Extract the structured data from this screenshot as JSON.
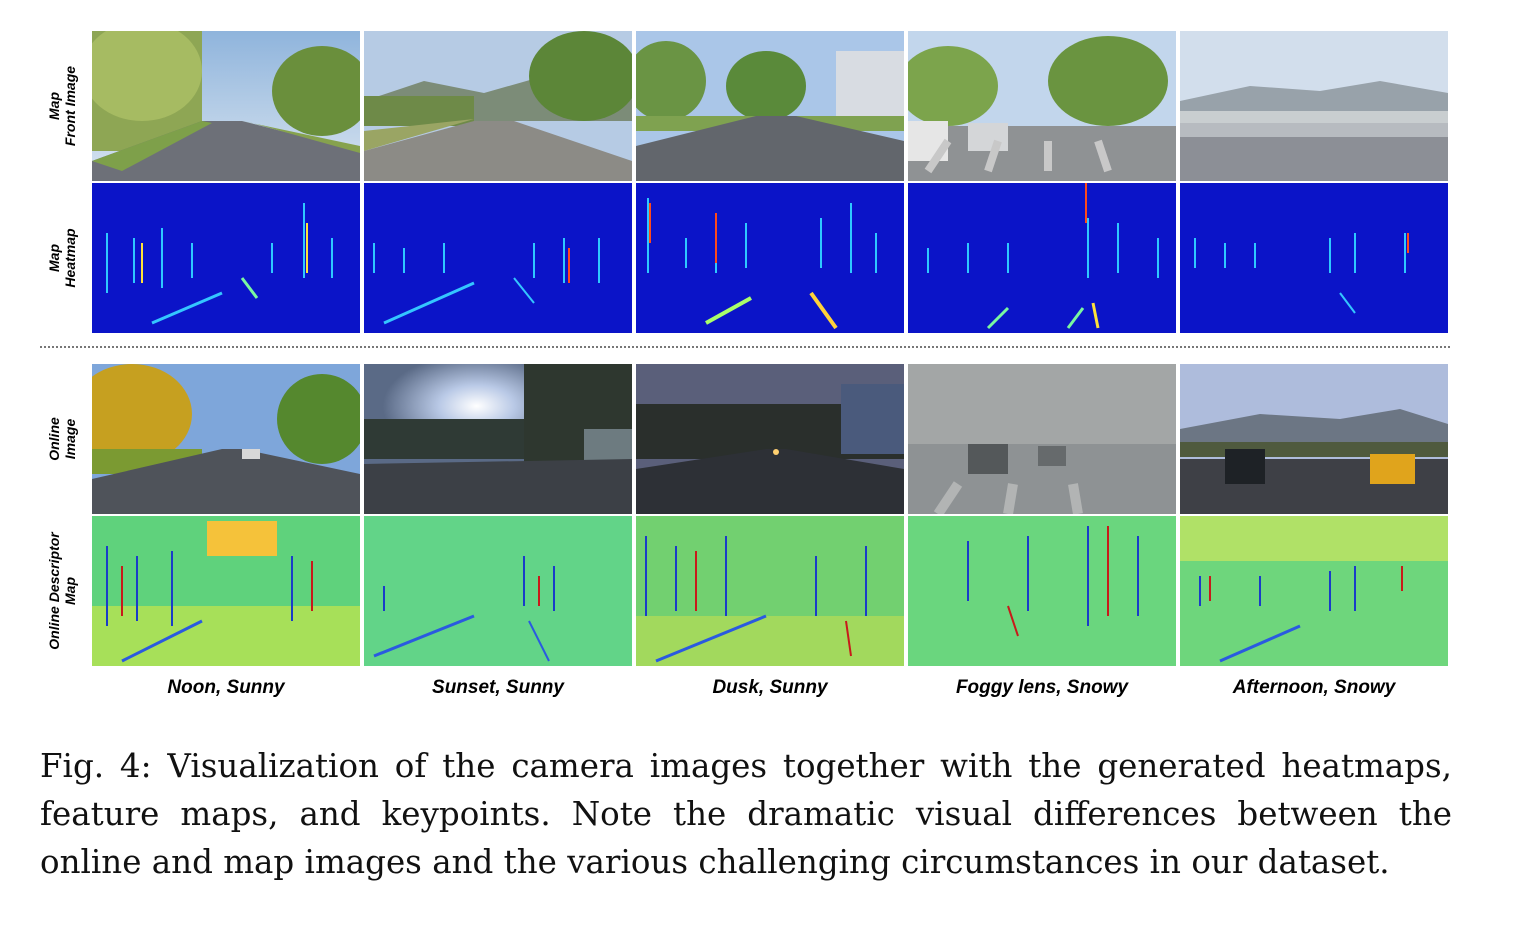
{
  "figure": {
    "row_labels": {
      "map_image": [
        "Map",
        "Front Image"
      ],
      "map_heatmap": [
        "Map",
        "Heatmap"
      ],
      "online_image": [
        "Online",
        "Image"
      ],
      "online_descriptor": [
        "Online Descriptor",
        "Map"
      ]
    },
    "columns": [
      {
        "label": "Noon, Sunny"
      },
      {
        "label": "Sunset, Sunny"
      },
      {
        "label": "Dusk, Sunny"
      },
      {
        "label": "Foggy lens, Snowy"
      },
      {
        "label": "Afternoon, Snowy"
      }
    ],
    "colors": {
      "heatmap_background": "#0b14c8",
      "descriptor_background": "#5fd27c",
      "separator": "#777777"
    }
  },
  "caption": {
    "text": "Fig. 4: Visualization of the camera images together with the generated heatmaps, feature maps, and keypoints. Note the dramatic visual differences between the online and map images and the various challenging circumstances in our dataset."
  }
}
